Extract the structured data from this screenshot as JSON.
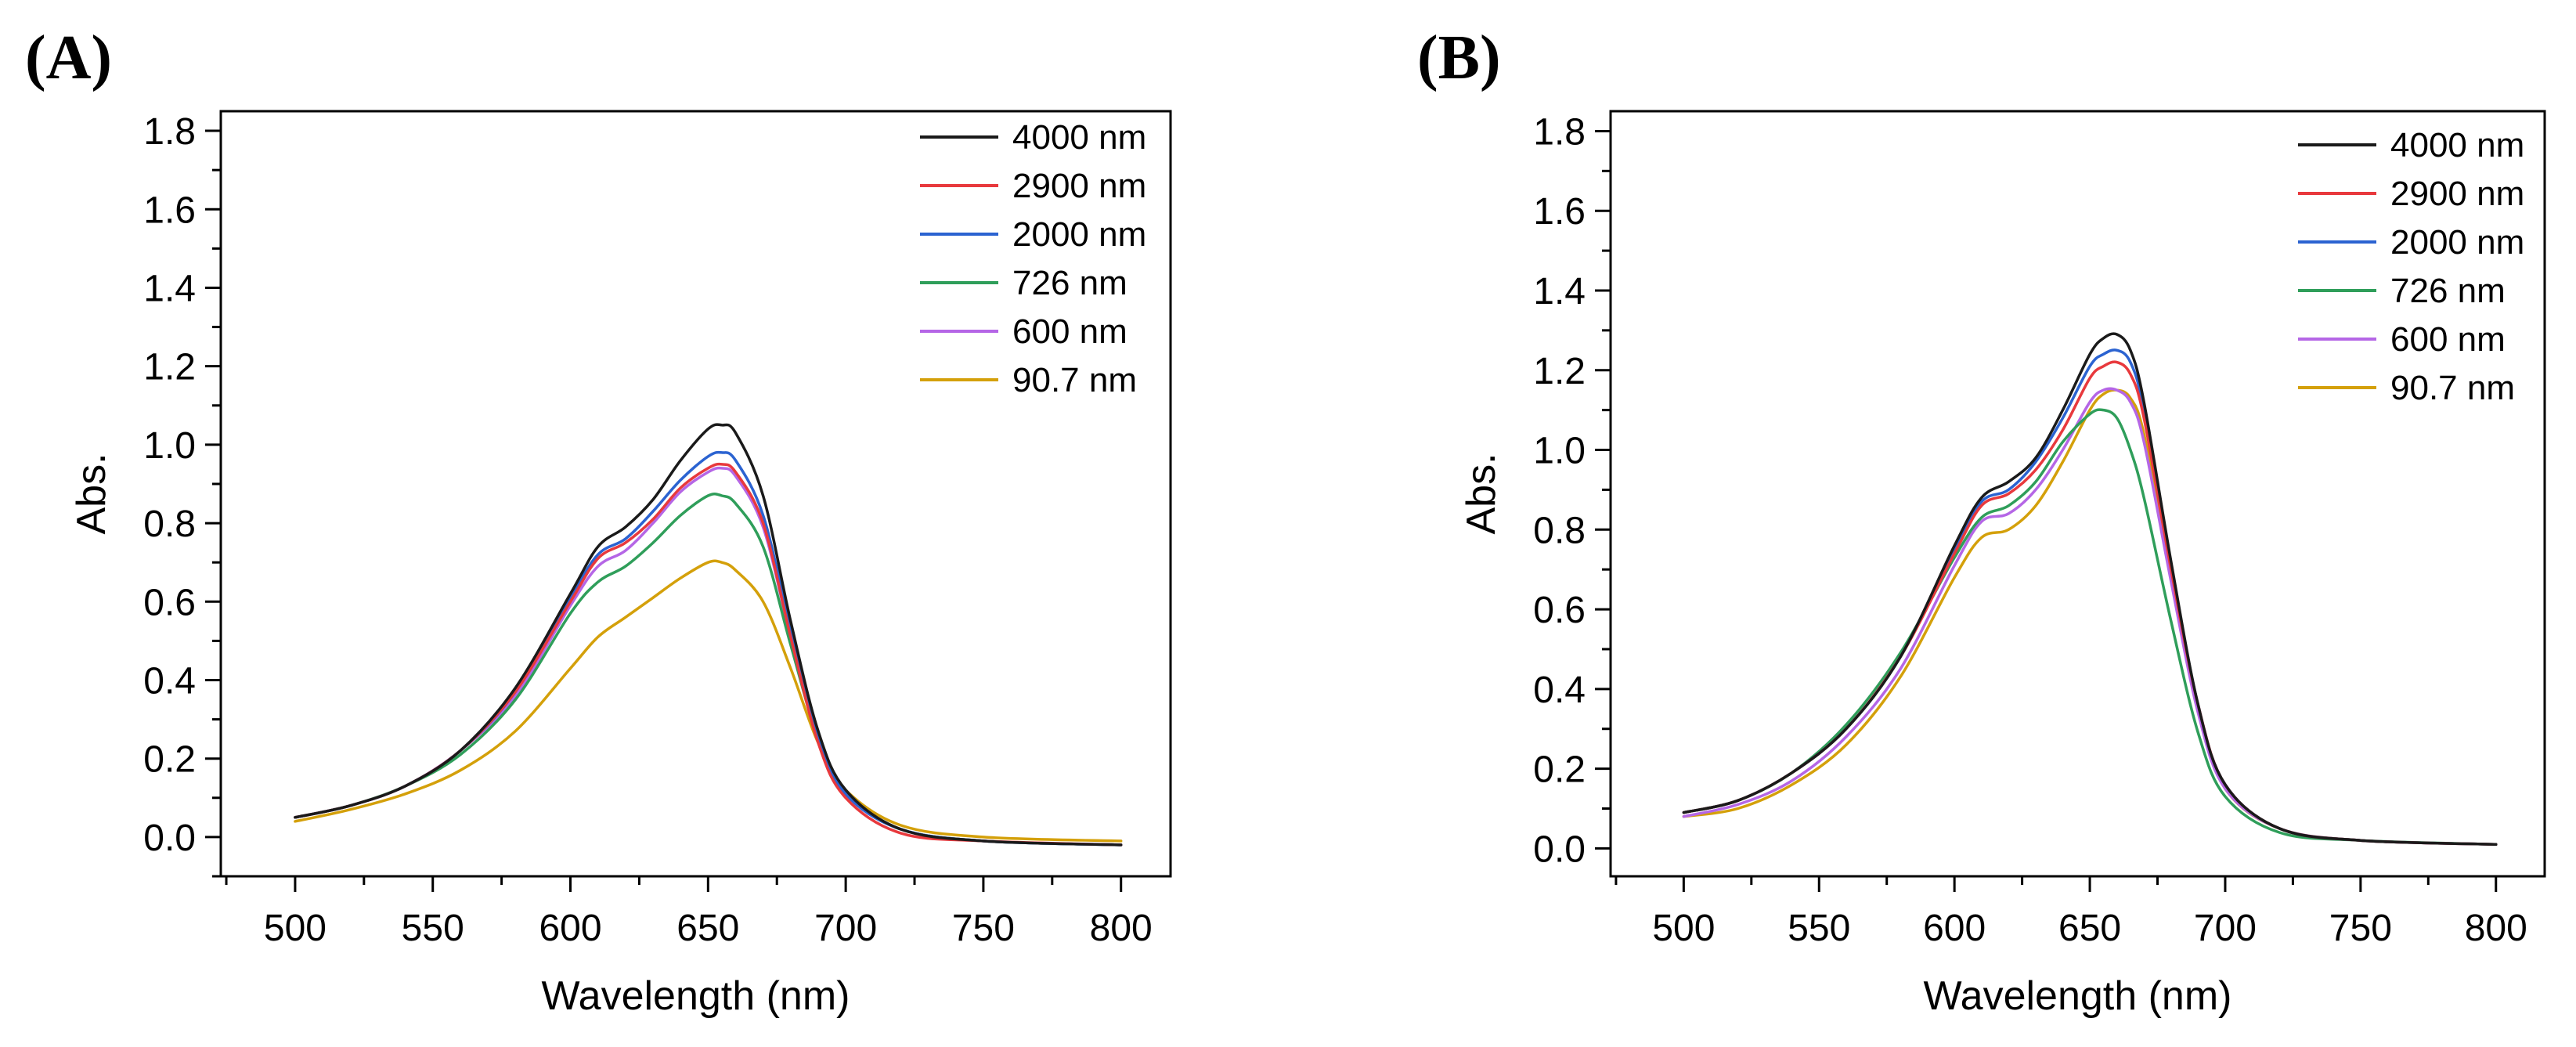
{
  "chart_data": [
    {
      "type": "line",
      "panel_label": "(A)",
      "xlabel": "Wavelength (nm)",
      "ylabel": "Abs.",
      "xlim": [
        473,
        818
      ],
      "ylim": [
        -0.1,
        1.85
      ],
      "xticks": [
        500,
        550,
        600,
        650,
        700,
        750,
        800
      ],
      "xtick_labels": [
        "500",
        "550",
        "600",
        "650",
        "700",
        "750",
        "800"
      ],
      "yticks": [
        0.0,
        0.2,
        0.4,
        0.6,
        0.8,
        1.0,
        1.2,
        1.4,
        1.6,
        1.8
      ],
      "ytick_labels": [
        "0.0",
        "0.2",
        "0.4",
        "0.6",
        "0.8",
        "1.0",
        "1.2",
        "1.4",
        "1.6",
        "1.8"
      ],
      "legend_position": "top-right",
      "x": [
        500,
        520,
        540,
        560,
        580,
        600,
        610,
        620,
        630,
        640,
        650,
        655,
        660,
        670,
        680,
        690,
        700,
        720,
        750,
        800
      ],
      "series": [
        {
          "name": "4000 nm",
          "color": "#1a1a1a",
          "values": [
            0.05,
            0.08,
            0.13,
            0.22,
            0.38,
            0.62,
            0.74,
            0.79,
            0.86,
            0.96,
            1.04,
            1.05,
            1.03,
            0.87,
            0.55,
            0.27,
            0.12,
            0.02,
            -0.01,
            -0.02
          ]
        },
        {
          "name": "2900 nm",
          "color": "#e8393d",
          "values": [
            0.05,
            0.08,
            0.13,
            0.22,
            0.37,
            0.6,
            0.71,
            0.75,
            0.81,
            0.89,
            0.94,
            0.95,
            0.93,
            0.8,
            0.51,
            0.24,
            0.1,
            0.01,
            -0.01,
            -0.02
          ]
        },
        {
          "name": "2000 nm",
          "color": "#2b63d1",
          "values": [
            0.05,
            0.08,
            0.13,
            0.22,
            0.37,
            0.61,
            0.72,
            0.76,
            0.83,
            0.91,
            0.97,
            0.98,
            0.96,
            0.82,
            0.53,
            0.26,
            0.11,
            0.02,
            -0.01,
            -0.02
          ]
        },
        {
          "name": "726 nm",
          "color": "#2f9e5a",
          "values": [
            0.05,
            0.08,
            0.13,
            0.21,
            0.35,
            0.57,
            0.65,
            0.69,
            0.75,
            0.82,
            0.87,
            0.87,
            0.85,
            0.74,
            0.49,
            0.25,
            0.11,
            0.02,
            -0.01,
            -0.02
          ]
        },
        {
          "name": "600 nm",
          "color": "#b566e6",
          "values": [
            0.05,
            0.08,
            0.13,
            0.22,
            0.36,
            0.59,
            0.69,
            0.73,
            0.8,
            0.88,
            0.93,
            0.94,
            0.92,
            0.79,
            0.51,
            0.25,
            0.11,
            0.02,
            -0.01,
            -0.02
          ]
        },
        {
          "name": "90.7 nm",
          "color": "#d4a00a",
          "values": [
            0.04,
            0.07,
            0.11,
            0.17,
            0.27,
            0.43,
            0.51,
            0.56,
            0.61,
            0.66,
            0.7,
            0.7,
            0.68,
            0.6,
            0.43,
            0.24,
            0.12,
            0.03,
            0.0,
            -0.01
          ]
        }
      ]
    },
    {
      "type": "line",
      "panel_label": "(B)",
      "xlabel": "Wavelength (nm)",
      "ylabel": "Abs.",
      "xlim": [
        473,
        818
      ],
      "ylim": [
        -0.07,
        1.85
      ],
      "xticks": [
        500,
        550,
        600,
        650,
        700,
        750,
        800
      ],
      "xtick_labels": [
        "500",
        "550",
        "600",
        "650",
        "700",
        "750",
        "800"
      ],
      "yticks": [
        0.0,
        0.2,
        0.4,
        0.6,
        0.8,
        1.0,
        1.2,
        1.4,
        1.6,
        1.8
      ],
      "ytick_labels": [
        "0.0",
        "0.2",
        "0.4",
        "0.6",
        "0.8",
        "1.0",
        "1.2",
        "1.4",
        "1.6",
        "1.8"
      ],
      "legend_position": "top-right",
      "x": [
        500,
        520,
        540,
        560,
        580,
        600,
        610,
        620,
        630,
        640,
        650,
        655,
        660,
        665,
        670,
        680,
        690,
        700,
        720,
        750,
        800
      ],
      "series": [
        {
          "name": "4000 nm",
          "color": "#1a1a1a",
          "values": [
            0.09,
            0.12,
            0.19,
            0.3,
            0.48,
            0.76,
            0.88,
            0.92,
            0.98,
            1.1,
            1.24,
            1.28,
            1.29,
            1.25,
            1.12,
            0.72,
            0.36,
            0.16,
            0.05,
            0.02,
            0.01
          ]
        },
        {
          "name": "2900 nm",
          "color": "#e8393d",
          "values": [
            0.09,
            0.12,
            0.19,
            0.3,
            0.48,
            0.74,
            0.86,
            0.89,
            0.95,
            1.05,
            1.18,
            1.21,
            1.22,
            1.19,
            1.08,
            0.7,
            0.36,
            0.16,
            0.05,
            0.02,
            0.01
          ]
        },
        {
          "name": "2000 nm",
          "color": "#2b63d1",
          "values": [
            0.09,
            0.12,
            0.19,
            0.3,
            0.48,
            0.75,
            0.87,
            0.9,
            0.97,
            1.08,
            1.21,
            1.24,
            1.25,
            1.22,
            1.1,
            0.71,
            0.36,
            0.16,
            0.05,
            0.02,
            0.01
          ]
        },
        {
          "name": "726 nm",
          "color": "#2f9e5a",
          "values": [
            0.09,
            0.12,
            0.19,
            0.31,
            0.49,
            0.73,
            0.83,
            0.86,
            0.92,
            1.02,
            1.09,
            1.1,
            1.08,
            1.0,
            0.88,
            0.57,
            0.29,
            0.13,
            0.04,
            0.02,
            0.01
          ]
        },
        {
          "name": "600 nm",
          "color": "#b566e6",
          "values": [
            0.08,
            0.11,
            0.17,
            0.28,
            0.45,
            0.71,
            0.82,
            0.84,
            0.9,
            1.0,
            1.12,
            1.15,
            1.15,
            1.12,
            1.02,
            0.67,
            0.34,
            0.15,
            0.05,
            0.02,
            0.01
          ]
        },
        {
          "name": "90.7 nm",
          "color": "#d4a00a",
          "values": [
            0.08,
            0.1,
            0.16,
            0.26,
            0.43,
            0.68,
            0.78,
            0.8,
            0.86,
            0.97,
            1.1,
            1.14,
            1.15,
            1.13,
            1.04,
            0.69,
            0.35,
            0.15,
            0.05,
            0.02,
            0.01
          ]
        }
      ]
    }
  ]
}
